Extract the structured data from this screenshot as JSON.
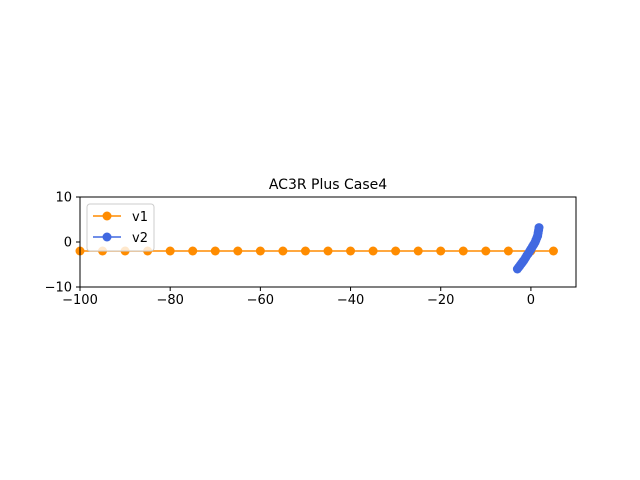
{
  "chart_data": {
    "type": "line",
    "title": "AC3R Plus Case4",
    "xlabel": "",
    "ylabel": "",
    "xlim": [
      -100,
      10
    ],
    "ylim": [
      -10,
      10
    ],
    "xticks": [
      -100,
      -80,
      -60,
      -40,
      -20,
      0
    ],
    "yticks": [
      -10,
      0,
      10
    ],
    "xtick_labels": [
      "−100",
      "−80",
      "−60",
      "−40",
      "−20",
      "0"
    ],
    "ytick_labels": [
      "−10",
      "0",
      "10"
    ],
    "grid": false,
    "legend": {
      "placement": "upper-left"
    },
    "series": [
      {
        "name": "v1",
        "color": "#ff8c00",
        "marker": "circle",
        "x": [
          -100,
          -95,
          -90,
          -85,
          -80,
          -75,
          -70,
          -65,
          -60,
          -55,
          -50,
          -45,
          -40,
          -35,
          -30,
          -25,
          -20,
          -15,
          -10,
          -5,
          0,
          5
        ],
        "y": [
          -2,
          -2,
          -2,
          -2,
          -2,
          -2,
          -2,
          -2,
          -2,
          -2,
          -2,
          -2,
          -2,
          -2,
          -2,
          -2,
          -2,
          -2,
          -2,
          -2,
          -2,
          -2
        ]
      },
      {
        "name": "v2",
        "color": "#4169e1",
        "marker": "circle",
        "x": [
          -3.0,
          -2.7,
          -2.4,
          -2.1,
          -1.8,
          -1.5,
          -1.2,
          -0.9,
          -0.6,
          -0.3,
          0.0,
          0.3,
          0.6,
          0.9,
          1.1,
          1.3,
          1.5,
          1.6,
          1.7,
          1.8
        ],
        "y": [
          -6.0,
          -5.6,
          -5.2,
          -4.8,
          -4.4,
          -4.0,
          -3.5,
          -3.0,
          -2.6,
          -2.1,
          -1.6,
          -1.1,
          -0.6,
          -0.1,
          0.4,
          0.9,
          1.4,
          2.0,
          2.6,
          3.2
        ]
      }
    ]
  }
}
